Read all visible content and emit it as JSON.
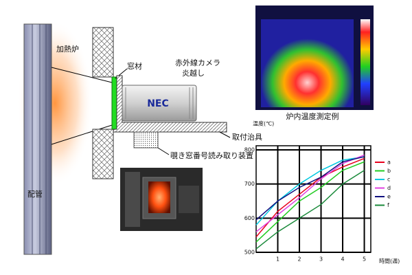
{
  "diagram": {
    "furnace": "加熱炉",
    "pipe": "配管",
    "window": "窓材",
    "camera": [
      "赤外線カメラ",
      "炎越し"
    ],
    "brand": "NEC",
    "jig": "取付治具",
    "reader": "覗き窓番号読み取り装置",
    "caption": "炉内温度測定例"
  },
  "chart_data": {
    "type": "line",
    "ylabel": "温度(℃)",
    "xlabel": "時間(週)",
    "x": [
      0,
      1,
      2,
      3,
      4,
      5
    ],
    "series": [
      {
        "name": "a",
        "color": "#e8001c",
        "values": [
          545,
          620,
          670,
          720,
          750,
          775
        ]
      },
      {
        "name": "b",
        "color": "#22cc22",
        "values": [
          530,
          590,
          650,
          690,
          740,
          765
        ]
      },
      {
        "name": "c",
        "color": "#00c8e0",
        "values": [
          580,
          650,
          700,
          740,
          770,
          780
        ]
      },
      {
        "name": "d",
        "color": "#e040e0",
        "values": [
          560,
          610,
          660,
          715,
          760,
          785
        ]
      },
      {
        "name": "e",
        "color": "#101080",
        "values": [
          595,
          650,
          690,
          720,
          765,
          780
        ]
      },
      {
        "name": "f",
        "color": "#1a8a3a",
        "values": [
          510,
          560,
          600,
          640,
          700,
          740
        ]
      }
    ],
    "xlim": [
      0,
      5.3
    ],
    "ylim": [
      500,
      800
    ],
    "xticks": [
      1,
      2,
      3,
      4,
      5
    ],
    "yticks": [
      500,
      600,
      700,
      800
    ],
    "grid": true
  }
}
